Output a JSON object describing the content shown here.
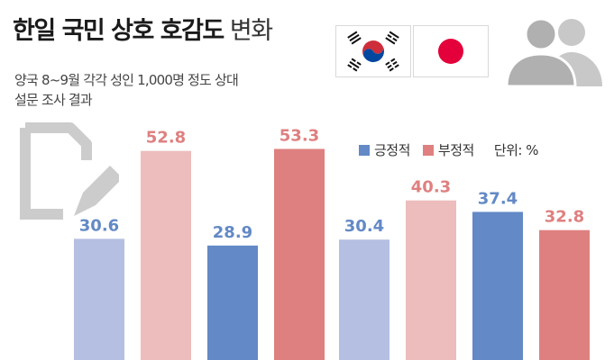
{
  "header": {
    "title_bold": "한일 국민 상호 호감도",
    "title_light": "변화",
    "subtitle_line1": "양국 8~9월 각각 성인 1,000명 정도 상대",
    "subtitle_line2": "설문 조사 결과"
  },
  "flags": {
    "kr": "south-korea-flag-icon",
    "jp": "japan-flag-icon"
  },
  "legend": {
    "positive_label": "긍정적",
    "negative_label": "부정적",
    "unit_label": "단위: %"
  },
  "colors": {
    "positive_light": "#b4bfe1",
    "positive_dark": "#6389c6",
    "negative_light": "#ecbdbc",
    "negative_dark": "#df8080"
  },
  "chart_data": {
    "type": "bar",
    "unit": "%",
    "groups": [
      {
        "bars": [
          {
            "series": "긍정적",
            "value": 30.6,
            "shade": "light"
          },
          {
            "series": "부정적",
            "value": 52.8,
            "shade": "light"
          },
          {
            "series": "긍정적",
            "value": 28.9,
            "shade": "dark"
          },
          {
            "series": "부정적",
            "value": 53.3,
            "shade": "dark"
          }
        ]
      },
      {
        "bars": [
          {
            "series": "긍정적",
            "value": 30.4,
            "shade": "light"
          },
          {
            "series": "부정적",
            "value": 40.3,
            "shade": "light"
          },
          {
            "series": "긍정적",
            "value": 37.4,
            "shade": "dark"
          },
          {
            "series": "부정적",
            "value": 32.8,
            "shade": "dark"
          }
        ]
      }
    ]
  }
}
